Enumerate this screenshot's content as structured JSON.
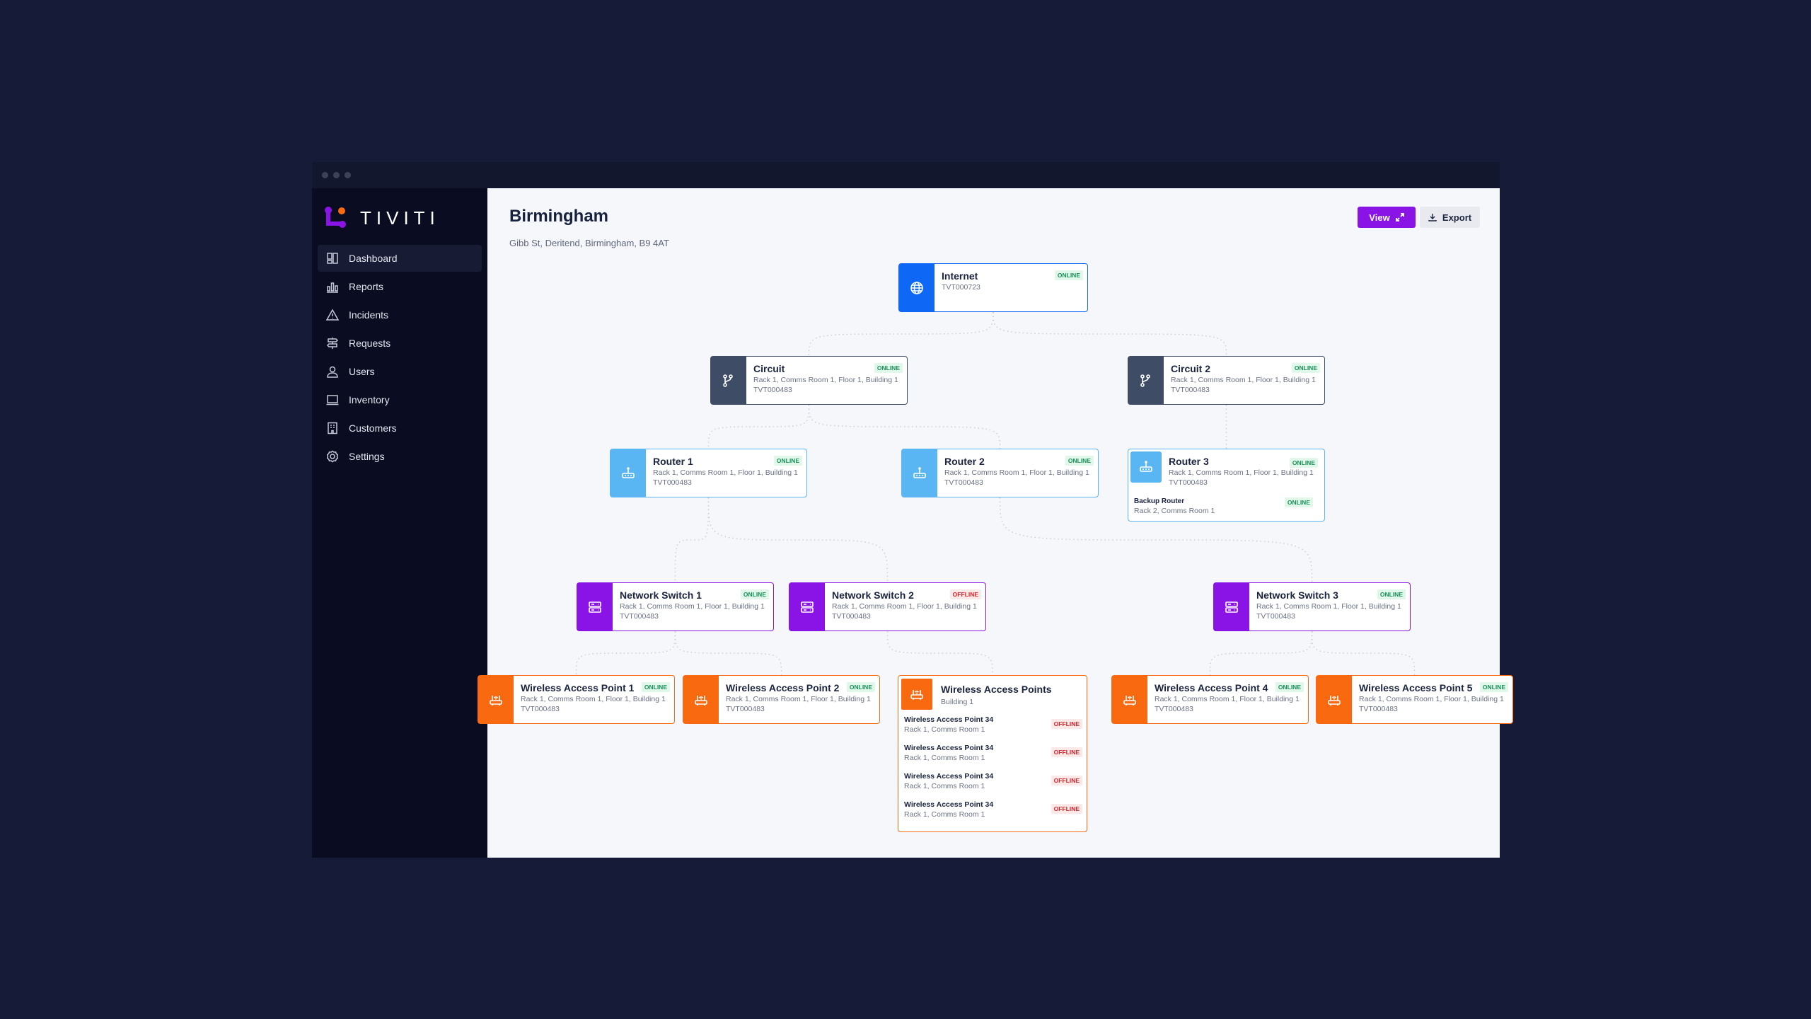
{
  "window": {
    "controls": [
      "close",
      "minimize",
      "maximize"
    ]
  },
  "brand": {
    "name": "TIVITI",
    "colors": {
      "purple": "#8a14e6",
      "orange": "#f96a10"
    }
  },
  "sidebar": {
    "items": [
      {
        "label": "Dashboard",
        "icon": "dashboard-icon",
        "active": true
      },
      {
        "label": "Reports",
        "icon": "bar-chart-icon"
      },
      {
        "label": "Incidents",
        "icon": "warning-icon"
      },
      {
        "label": "Requests",
        "icon": "signpost-icon"
      },
      {
        "label": "Users",
        "icon": "user-icon"
      },
      {
        "label": "Inventory",
        "icon": "laptop-icon"
      },
      {
        "label": "Customers",
        "icon": "building-icon"
      },
      {
        "label": "Settings",
        "icon": "gear-icon"
      }
    ]
  },
  "header": {
    "title": "Birmingham",
    "address": "Gibb St, Deritend, Birmingham, B9 4AT",
    "view_label": "View",
    "export_label": "Export"
  },
  "type_colors": {
    "internet": "#0e68f5",
    "circuit": "#3f4c66",
    "router": "#5ab5f3",
    "switch": "#8a14e6",
    "wap": "#f96a10"
  },
  "nodes": [
    {
      "key": "internet",
      "type": "internet",
      "icon": "globe-icon",
      "title": "Internet",
      "id": "TVT000723",
      "status": "ONLINE"
    },
    {
      "key": "circuit",
      "type": "circuit",
      "icon": "branch-icon",
      "title": "Circuit",
      "location": "Rack 1, Comms Room 1, Floor 1, Building 1",
      "id": "TVT000483",
      "status": "ONLINE"
    },
    {
      "key": "circuit2",
      "type": "circuit",
      "icon": "branch-icon",
      "title": "Circuit 2",
      "location": "Rack 1, Comms Room 1, Floor 1, Building 1",
      "id": "TVT000483",
      "status": "ONLINE"
    },
    {
      "key": "router1",
      "type": "router",
      "icon": "router-icon",
      "title": "Router 1",
      "location": "Rack 1, Comms Room 1, Floor 1, Building 1",
      "id": "TVT000483",
      "status": "ONLINE"
    },
    {
      "key": "router2",
      "type": "router",
      "icon": "router-icon",
      "title": "Router 2",
      "location": "Rack 1, Comms Room 1, Floor 1, Building 1",
      "id": "TVT000483",
      "status": "ONLINE"
    },
    {
      "key": "router3",
      "type": "router",
      "icon": "router-icon",
      "title": "Router 3",
      "location": "Rack 1, Comms Room 1, Floor 1, Building 1",
      "id": "TVT000483",
      "status": "ONLINE",
      "sub": {
        "title": "Backup Router",
        "location": "Rack 2, Comms Room 1",
        "status": "ONLINE"
      }
    },
    {
      "key": "ns1",
      "type": "switch",
      "icon": "server-icon",
      "title": "Network Switch 1",
      "location": "Rack 1, Comms Room 1, Floor 1, Building 1",
      "id": "TVT000483",
      "status": "ONLINE"
    },
    {
      "key": "ns2",
      "type": "switch",
      "icon": "server-icon",
      "title": "Network Switch 2",
      "location": "Rack 1, Comms Room 1, Floor 1, Building 1",
      "id": "TVT000483",
      "status": "OFFLINE"
    },
    {
      "key": "ns3",
      "type": "switch",
      "icon": "server-icon",
      "title": "Network Switch 3",
      "location": "Rack 1, Comms Room 1, Floor 1, Building 1",
      "id": "TVT000483",
      "status": "ONLINE"
    },
    {
      "key": "wap1",
      "type": "wap",
      "icon": "wifi-router-icon",
      "title": "Wireless Access Point 1",
      "location": "Rack 1, Comms Room 1, Floor 1, Building 1",
      "id": "TVT000483",
      "status": "ONLINE"
    },
    {
      "key": "wap2",
      "type": "wap",
      "icon": "wifi-router-icon",
      "title": "Wireless Access Point 2",
      "location": "Rack 1, Comms Room 1, Floor 1, Building 1",
      "id": "TVT000483",
      "status": "ONLINE"
    },
    {
      "key": "waps",
      "type": "wap",
      "icon": "wifi-router-icon",
      "title": "Wireless Access Points",
      "location": "Building 1",
      "group": [
        {
          "title": "Wireless Access Point 34",
          "location": "Rack 1, Comms Room 1",
          "status": "OFFLINE"
        },
        {
          "title": "Wireless Access Point 34",
          "location": "Rack 1, Comms Room 1",
          "status": "OFFLINE"
        },
        {
          "title": "Wireless Access Point 34",
          "location": "Rack 1, Comms Room 1",
          "status": "OFFLINE"
        },
        {
          "title": "Wireless Access Point 34",
          "location": "Rack 1, Comms Room 1",
          "status": "OFFLINE"
        }
      ]
    },
    {
      "key": "wap4",
      "type": "wap",
      "icon": "wifi-router-icon",
      "title": "Wireless Access Point 4",
      "location": "Rack 1, Comms Room 1, Floor 1, Building 1",
      "id": "TVT000483",
      "status": "ONLINE"
    },
    {
      "key": "wap5",
      "type": "wap",
      "icon": "wifi-router-icon",
      "title": "Wireless Access Point 5",
      "location": "Rack 1, Comms Room 1, Floor 1, Building 1",
      "id": "TVT000483",
      "status": "ONLINE"
    }
  ],
  "links": [
    [
      "internet",
      "circuit"
    ],
    [
      "internet",
      "circuit2"
    ],
    [
      "circuit",
      "router1"
    ],
    [
      "circuit",
      "router2"
    ],
    [
      "circuit2",
      "router3"
    ],
    [
      "router1",
      "ns1"
    ],
    [
      "router1",
      "ns2"
    ],
    [
      "router2",
      "ns3"
    ],
    [
      "ns1",
      "wap1"
    ],
    [
      "ns1",
      "wap2"
    ],
    [
      "ns2",
      "waps"
    ],
    [
      "ns3",
      "wap4"
    ],
    [
      "ns3",
      "wap5"
    ]
  ]
}
